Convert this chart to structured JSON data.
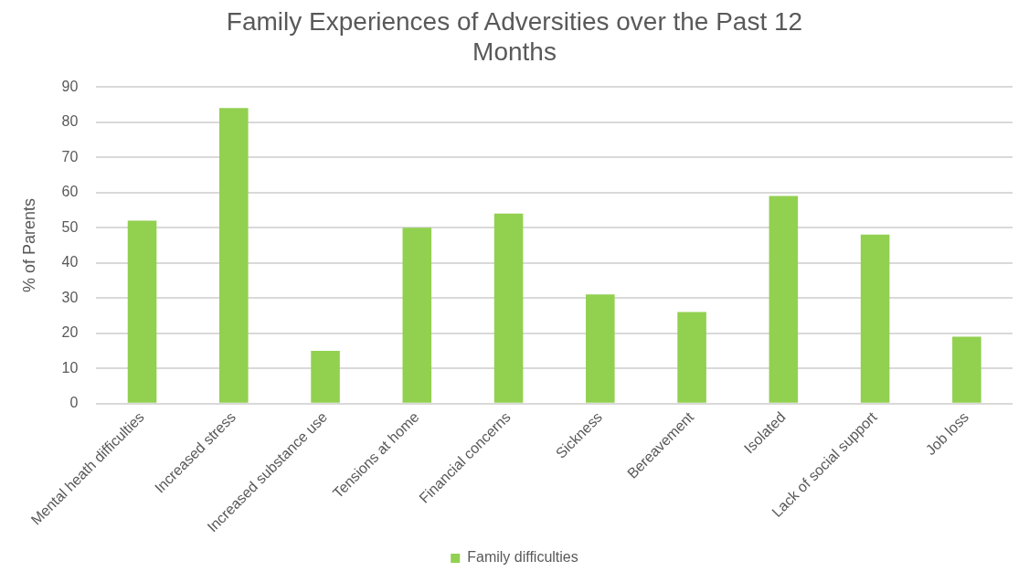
{
  "chart_data": {
    "type": "bar",
    "title": [
      "Family Experiences of Adversities over the Past 12",
      "Months"
    ],
    "ylabel": "% of Parents",
    "categories": [
      "Mental heath difficulties",
      "Increased stress",
      "Increased substance use",
      "Tensions at home",
      "Financial concerns",
      "Sickness",
      "Bereavement",
      "Isolated",
      "Lack of social support",
      "Job loss"
    ],
    "series": [
      {
        "name": "Family difficulties",
        "color": "#92d050",
        "values": [
          52,
          84,
          15,
          50,
          54,
          31,
          26,
          59,
          48,
          19
        ]
      }
    ],
    "ylim": [
      0,
      90
    ],
    "yticks": [
      0,
      10,
      20,
      30,
      40,
      50,
      60,
      70,
      80,
      90
    ],
    "grid": "y",
    "legend": "bottom"
  }
}
